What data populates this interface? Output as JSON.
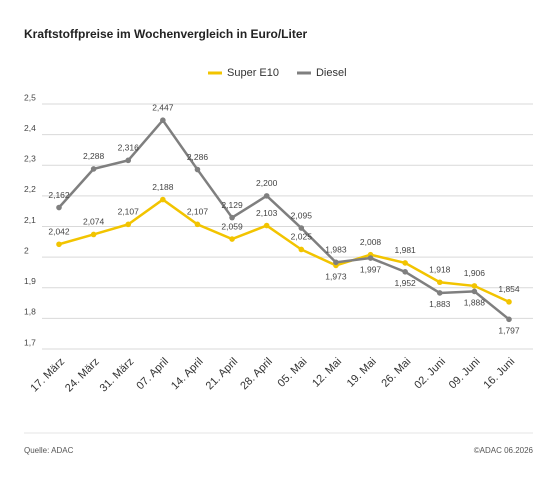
{
  "chart_data": {
    "type": "line",
    "title": "Kraftstoffpreise im Wochenvergleich in Euro/Liter",
    "categories": [
      "17. März",
      "24. März",
      "31. März",
      "07. April",
      "14. April",
      "21. April",
      "28. April",
      "05. Mai",
      "12. Mai",
      "19. Mai",
      "26. Mai",
      "02. Juni",
      "09. Juni",
      "16. Juni"
    ],
    "series": [
      {
        "name": "Super E10",
        "color": "#f2c400",
        "values": [
          2.042,
          2.074,
          2.107,
          2.188,
          2.107,
          2.059,
          2.103,
          2.025,
          1.973,
          2.008,
          1.981,
          1.918,
          1.906,
          1.854
        ],
        "value_labels": [
          "2,042",
          "2,074",
          "2,107",
          "2,188",
          "2,107",
          "2,059",
          "2,103",
          "2,025",
          "1,973",
          "2,008",
          "1,981",
          "1,918",
          "1,906",
          "1,854"
        ]
      },
      {
        "name": "Diesel",
        "color": "#7f7f7f",
        "values": [
          2.162,
          2.288,
          2.316,
          2.447,
          2.286,
          2.129,
          2.2,
          2.095,
          1.983,
          1.997,
          1.952,
          1.883,
          1.888,
          1.797
        ],
        "value_labels": [
          "2,162",
          "2,288",
          "2,316",
          "2,447",
          "2,286",
          "2,129",
          "2,200",
          "2,095",
          "1,983",
          "1,997",
          "1,952",
          "1,883",
          "1,888",
          "1,797"
        ]
      }
    ],
    "ylim": [
      1.7,
      2.5
    ],
    "yticks": [
      {
        "value": 1.7,
        "label": "1,7"
      },
      {
        "value": 1.8,
        "label": "1,8"
      },
      {
        "value": 1.9,
        "label": "1,9"
      },
      2,
      {
        "value": 2.1,
        "label": "2,1"
      },
      {
        "value": 2.2,
        "label": "2,2"
      },
      {
        "value": 2.3,
        "label": "2,3"
      },
      {
        "value": 2.4,
        "label": "2,4"
      },
      {
        "value": 2.5,
        "label": "2,5"
      }
    ],
    "grid": true,
    "legend": "top",
    "source": "Quelle: ADAC",
    "copyright": "©ADAC 06.2026"
  }
}
